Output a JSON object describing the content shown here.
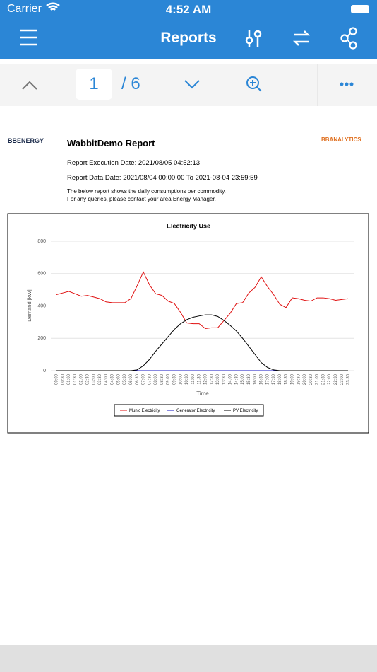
{
  "status_bar": {
    "carrier": "Carrier",
    "time": "4:52 AM"
  },
  "nav_bar": {
    "title": "Reports"
  },
  "pager": {
    "current": "1",
    "total": "/ 6"
  },
  "report": {
    "left_logo": "BBENERGY",
    "right_logo": "BBANALYTICS",
    "title": "WabbitDemo Report",
    "execution_date": "Report Execution Date: 2021/08/05 04:52:13",
    "data_date": "Report Data Date: 2021/08/04 00:00:00 To 2021-08-04 23:59:59",
    "description": [
      "The below report shows the daily consumptions per commodity.",
      "For any queries, please contact your area Energy Manager."
    ]
  },
  "chart_data": {
    "type": "line",
    "title": "Electricity  Use",
    "y_label": "Demand [kW]",
    "x_label": "Time",
    "ylim": [
      0,
      800
    ],
    "yticks": [
      0,
      200,
      400,
      600,
      800
    ],
    "grid": true,
    "categories": [
      "00:00",
      "00:30",
      "01:00",
      "01:30",
      "02:00",
      "02:30",
      "03:00",
      "03:30",
      "04:00",
      "04:30",
      "05:00",
      "05:30",
      "06:00",
      "06:30",
      "07:00",
      "07:30",
      "08:00",
      "08:30",
      "09:00",
      "09:30",
      "10:00",
      "10:30",
      "11:00",
      "11:30",
      "12:00",
      "12:30",
      "13:00",
      "13:30",
      "14:00",
      "14:30",
      "15:00",
      "15:30",
      "16:00",
      "16:30",
      "17:00",
      "17:30",
      "18:00",
      "18:30",
      "19:00",
      "19:30",
      "20:00",
      "20:30",
      "21:00",
      "21:30",
      "22:00",
      "22:30",
      "23:00",
      "23:30"
    ],
    "series": [
      {
        "name": "Munic Electricity",
        "color": "#e01010",
        "values": [
          470,
          480,
          490,
          475,
          460,
          465,
          455,
          445,
          425,
          420,
          420,
          420,
          445,
          525,
          610,
          530,
          475,
          465,
          430,
          415,
          360,
          295,
          290,
          290,
          260,
          265,
          265,
          310,
          355,
          415,
          420,
          480,
          515,
          580,
          520,
          470,
          410,
          390,
          450,
          445,
          435,
          430,
          450,
          450,
          445,
          435,
          440,
          445
        ]
      },
      {
        "name": "Generator Electricity",
        "color": "#1010c0",
        "values": [
          0,
          0,
          0,
          0,
          0,
          0,
          0,
          0,
          0,
          0,
          0,
          0,
          0,
          0,
          0,
          0,
          0,
          0,
          0,
          0,
          0,
          0,
          0,
          0,
          0,
          0,
          0,
          0,
          0,
          0,
          0,
          0,
          0,
          0,
          0,
          0,
          0,
          0,
          0,
          0,
          0,
          0,
          0,
          0,
          0,
          0,
          0,
          0
        ]
      },
      {
        "name": "PV Electricity",
        "color": "#000000",
        "values": [
          0,
          0,
          0,
          0,
          0,
          0,
          0,
          0,
          0,
          0,
          0,
          0,
          0,
          5,
          30,
          70,
          120,
          165,
          210,
          255,
          290,
          315,
          330,
          338,
          345,
          345,
          335,
          310,
          280,
          245,
          200,
          150,
          100,
          50,
          20,
          5,
          0,
          0,
          0,
          0,
          0,
          0,
          0,
          0,
          0,
          0,
          0,
          0
        ]
      }
    ]
  }
}
